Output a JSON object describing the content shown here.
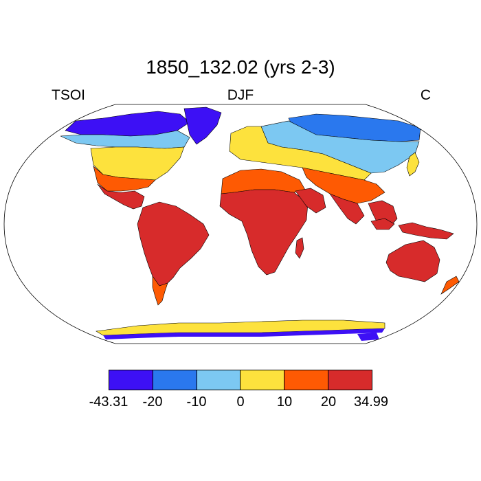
{
  "title": "1850_132.02 (yrs 2-3)",
  "labels": {
    "left": "TSOI",
    "center": "DJF",
    "right": "C"
  },
  "colorbar": {
    "colors": [
      "#3d10f5",
      "#2a78ee",
      "#7cc8f2",
      "#fde23d",
      "#fe5a03",
      "#d72b2b"
    ],
    "ticks": [
      "-43.31",
      "-20",
      "-10",
      "0",
      "10",
      "20",
      "34.99"
    ]
  },
  "colors": {
    "ocean": "#ffffff",
    "coast": "#000000"
  }
}
